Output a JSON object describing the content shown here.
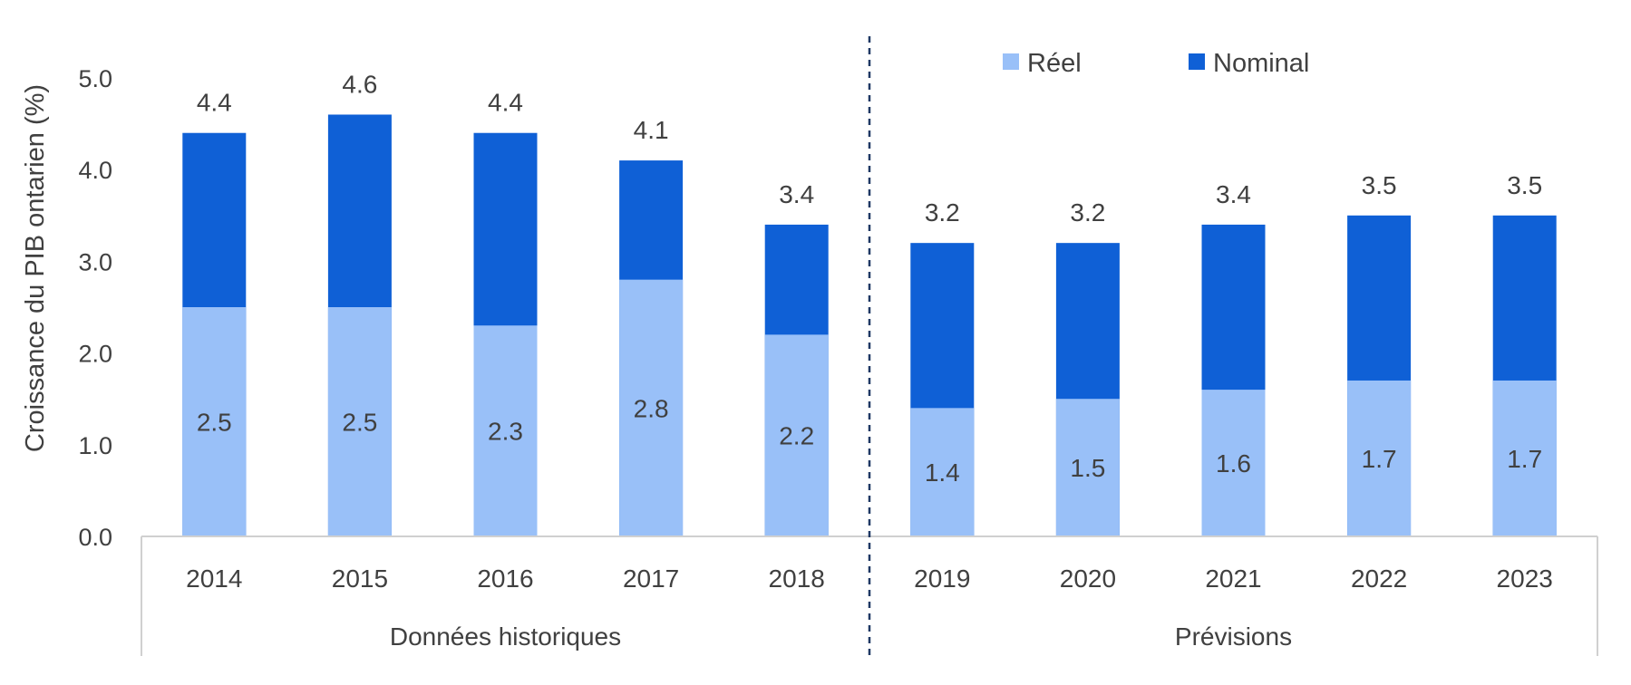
{
  "chart_data": {
    "type": "bar",
    "stacked": false,
    "overlapping": true,
    "categories": [
      "2014",
      "2015",
      "2016",
      "2017",
      "2018",
      "2019",
      "2020",
      "2021",
      "2022",
      "2023"
    ],
    "series": [
      {
        "name": "Réel",
        "values": [
          2.5,
          2.5,
          2.3,
          2.8,
          2.2,
          1.4,
          1.5,
          1.6,
          1.7,
          1.7
        ],
        "labels": [
          "2.5",
          "2.5",
          "2.3",
          "2.8",
          "2.2",
          "1.4",
          "1.5",
          "1.6",
          "1.7",
          "1.7"
        ],
        "color": "#99C0F8"
      },
      {
        "name": "Nominal",
        "values": [
          4.4,
          4.6,
          4.4,
          4.1,
          3.4,
          3.2,
          3.2,
          3.4,
          3.5,
          3.5
        ],
        "labels": [
          "4.4",
          "4.6",
          "4.4",
          "4.1",
          "3.4",
          "3.2",
          "3.2",
          "3.4",
          "3.5",
          "3.5"
        ],
        "color": "#0F60D6"
      }
    ],
    "groups": [
      {
        "label": "Données historiques",
        "categories": [
          "2014",
          "2015",
          "2016",
          "2017",
          "2018"
        ]
      },
      {
        "label": "Prévisions",
        "categories": [
          "2019",
          "2020",
          "2021",
          "2022",
          "2023"
        ]
      }
    ],
    "ylabel": "Croissance du PIB ontarien (%)",
    "xlabel": "",
    "title": "",
    "ylim": [
      0,
      5
    ],
    "yticks": [
      "0.0",
      "1.0",
      "2.0",
      "3.0",
      "4.0",
      "5.0"
    ],
    "grid": false,
    "legend_position": "top-right",
    "divider": "dashed vertical line between 2018 and 2019",
    "divider_color": "#1F3864",
    "axis_color": "#D0D0D0"
  }
}
